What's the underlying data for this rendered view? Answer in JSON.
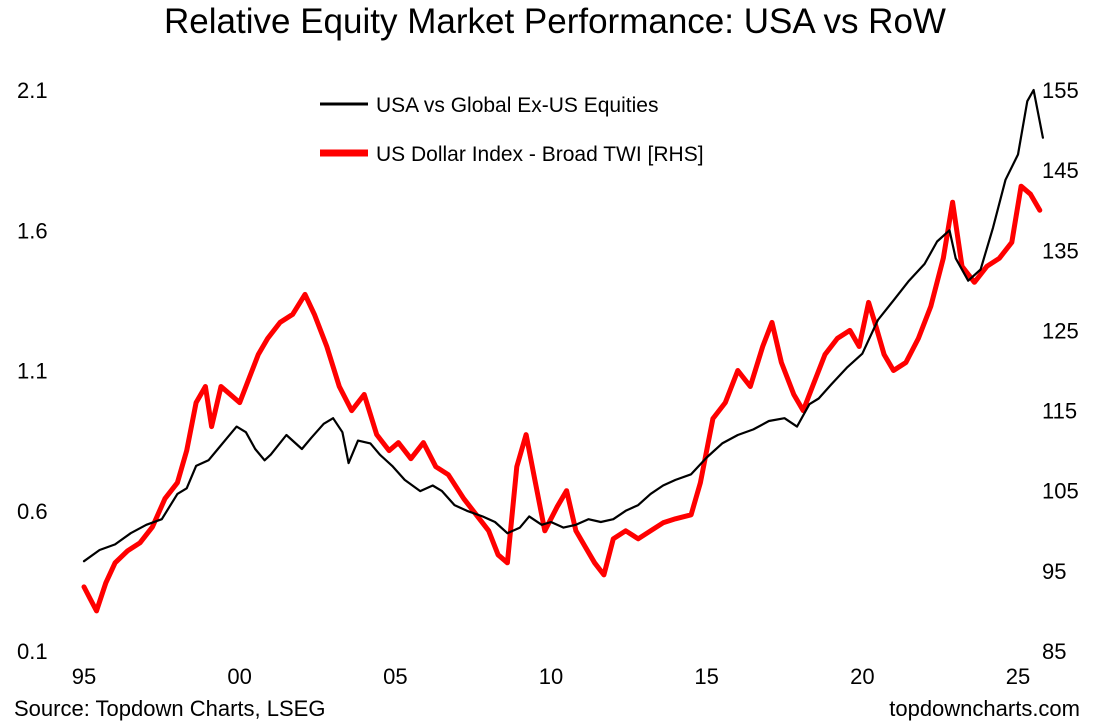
{
  "chart_data": {
    "type": "line",
    "title": "Relative Equity Market Performance: USA vs RoW",
    "x_ticks": [
      "95",
      "00",
      "05",
      "10",
      "15",
      "20",
      "25"
    ],
    "x_tick_years": [
      1995,
      2000,
      2005,
      2010,
      2015,
      2020,
      2025
    ],
    "xlim": [
      1995,
      2025
    ],
    "y_left": {
      "ticks": [
        "0.1",
        "0.6",
        "1.1",
        "1.6",
        "2.1"
      ],
      "lim": [
        0.1,
        2.1
      ]
    },
    "y_right": {
      "ticks": [
        "85",
        "95",
        "105",
        "115",
        "125",
        "135",
        "145",
        "155"
      ],
      "lim": [
        85,
        155
      ]
    },
    "legend_position": "top-center",
    "grid": false,
    "series": [
      {
        "name": "USA vs Global Ex-US Equities",
        "axis": "left",
        "color": "#000000",
        "points": [
          [
            1995.0,
            0.42
          ],
          [
            1995.5,
            0.46
          ],
          [
            1996.0,
            0.48
          ],
          [
            1996.5,
            0.52
          ],
          [
            1997.0,
            0.55
          ],
          [
            1997.5,
            0.57
          ],
          [
            1998.0,
            0.66
          ],
          [
            1998.3,
            0.68
          ],
          [
            1998.6,
            0.76
          ],
          [
            1999.0,
            0.78
          ],
          [
            1999.3,
            0.82
          ],
          [
            1999.6,
            0.86
          ],
          [
            1999.9,
            0.9
          ],
          [
            2000.2,
            0.88
          ],
          [
            2000.5,
            0.82
          ],
          [
            2000.8,
            0.78
          ],
          [
            2001.0,
            0.8
          ],
          [
            2001.5,
            0.87
          ],
          [
            2002.0,
            0.82
          ],
          [
            2002.3,
            0.86
          ],
          [
            2002.7,
            0.91
          ],
          [
            2003.0,
            0.93
          ],
          [
            2003.3,
            0.88
          ],
          [
            2003.5,
            0.77
          ],
          [
            2003.8,
            0.85
          ],
          [
            2004.2,
            0.84
          ],
          [
            2004.5,
            0.8
          ],
          [
            2004.9,
            0.76
          ],
          [
            2005.3,
            0.71
          ],
          [
            2005.8,
            0.67
          ],
          [
            2006.2,
            0.69
          ],
          [
            2006.5,
            0.67
          ],
          [
            2006.9,
            0.62
          ],
          [
            2007.3,
            0.6
          ],
          [
            2007.8,
            0.58
          ],
          [
            2008.2,
            0.56
          ],
          [
            2008.6,
            0.52
          ],
          [
            2009.0,
            0.54
          ],
          [
            2009.3,
            0.58
          ],
          [
            2009.7,
            0.55
          ],
          [
            2010.0,
            0.56
          ],
          [
            2010.4,
            0.54
          ],
          [
            2010.8,
            0.55
          ],
          [
            2011.2,
            0.57
          ],
          [
            2011.6,
            0.56
          ],
          [
            2012.0,
            0.57
          ],
          [
            2012.4,
            0.6
          ],
          [
            2012.8,
            0.62
          ],
          [
            2013.2,
            0.66
          ],
          [
            2013.6,
            0.69
          ],
          [
            2014.0,
            0.71
          ],
          [
            2014.5,
            0.73
          ],
          [
            2015.0,
            0.79
          ],
          [
            2015.5,
            0.84
          ],
          [
            2016.0,
            0.87
          ],
          [
            2016.5,
            0.89
          ],
          [
            2017.0,
            0.92
          ],
          [
            2017.5,
            0.93
          ],
          [
            2017.9,
            0.9
          ],
          [
            2018.3,
            0.98
          ],
          [
            2018.6,
            1.0
          ],
          [
            2019.0,
            1.05
          ],
          [
            2019.5,
            1.11
          ],
          [
            2020.0,
            1.16
          ],
          [
            2020.5,
            1.28
          ],
          [
            2021.0,
            1.35
          ],
          [
            2021.5,
            1.42
          ],
          [
            2022.0,
            1.48
          ],
          [
            2022.4,
            1.56
          ],
          [
            2022.8,
            1.6
          ],
          [
            2023.0,
            1.5
          ],
          [
            2023.4,
            1.42
          ],
          [
            2023.8,
            1.46
          ],
          [
            2024.2,
            1.61
          ],
          [
            2024.6,
            1.78
          ],
          [
            2025.0,
            1.87
          ],
          [
            2025.3,
            2.06
          ],
          [
            2025.5,
            2.1
          ],
          [
            2025.8,
            1.93
          ]
        ]
      },
      {
        "name": "US Dollar Index - Broad TWI [RHS]",
        "axis": "right",
        "color": "#ff0000",
        "points": [
          [
            1995.0,
            93.0
          ],
          [
            1995.2,
            91.5
          ],
          [
            1995.4,
            90.0
          ],
          [
            1995.7,
            93.5
          ],
          [
            1996.0,
            96.0
          ],
          [
            1996.4,
            97.5
          ],
          [
            1996.8,
            98.5
          ],
          [
            1997.2,
            100.5
          ],
          [
            1997.6,
            104.0
          ],
          [
            1998.0,
            106.0
          ],
          [
            1998.3,
            110.0
          ],
          [
            1998.6,
            116.0
          ],
          [
            1998.9,
            118.0
          ],
          [
            1999.1,
            113.0
          ],
          [
            1999.4,
            118.0
          ],
          [
            1999.7,
            117.0
          ],
          [
            2000.0,
            116.0
          ],
          [
            2000.3,
            119.0
          ],
          [
            2000.6,
            122.0
          ],
          [
            2000.9,
            124.0
          ],
          [
            2001.3,
            126.0
          ],
          [
            2001.7,
            127.0
          ],
          [
            2002.1,
            129.5
          ],
          [
            2002.4,
            127.0
          ],
          [
            2002.8,
            123.0
          ],
          [
            2003.2,
            118.0
          ],
          [
            2003.6,
            115.0
          ],
          [
            2004.0,
            117.0
          ],
          [
            2004.4,
            112.0
          ],
          [
            2004.8,
            110.0
          ],
          [
            2005.1,
            111.0
          ],
          [
            2005.5,
            109.0
          ],
          [
            2005.9,
            111.0
          ],
          [
            2006.3,
            108.0
          ],
          [
            2006.7,
            107.0
          ],
          [
            2007.2,
            104.0
          ],
          [
            2007.6,
            102.0
          ],
          [
            2008.0,
            100.0
          ],
          [
            2008.3,
            97.0
          ],
          [
            2008.6,
            96.0
          ],
          [
            2008.9,
            108.0
          ],
          [
            2009.2,
            112.0
          ],
          [
            2009.5,
            106.0
          ],
          [
            2009.8,
            100.0
          ],
          [
            2010.2,
            103.0
          ],
          [
            2010.5,
            105.0
          ],
          [
            2010.8,
            100.0
          ],
          [
            2011.1,
            98.0
          ],
          [
            2011.4,
            96.0
          ],
          [
            2011.7,
            94.5
          ],
          [
            2012.0,
            99.0
          ],
          [
            2012.4,
            100.0
          ],
          [
            2012.8,
            99.0
          ],
          [
            2013.2,
            100.0
          ],
          [
            2013.6,
            101.0
          ],
          [
            2014.0,
            101.5
          ],
          [
            2014.5,
            102.0
          ],
          [
            2014.8,
            106.0
          ],
          [
            2015.2,
            114.0
          ],
          [
            2015.6,
            116.0
          ],
          [
            2016.0,
            120.0
          ],
          [
            2016.4,
            118.0
          ],
          [
            2016.8,
            123.0
          ],
          [
            2017.1,
            126.0
          ],
          [
            2017.4,
            121.0
          ],
          [
            2017.8,
            117.0
          ],
          [
            2018.1,
            115.0
          ],
          [
            2018.4,
            118.0
          ],
          [
            2018.8,
            122.0
          ],
          [
            2019.2,
            124.0
          ],
          [
            2019.6,
            125.0
          ],
          [
            2019.9,
            123.0
          ],
          [
            2020.2,
            128.5
          ],
          [
            2020.4,
            126.0
          ],
          [
            2020.7,
            122.0
          ],
          [
            2021.0,
            120.0
          ],
          [
            2021.4,
            121.0
          ],
          [
            2021.8,
            124.0
          ],
          [
            2022.2,
            128.0
          ],
          [
            2022.6,
            134.0
          ],
          [
            2022.9,
            141.0
          ],
          [
            2023.2,
            133.0
          ],
          [
            2023.6,
            131.0
          ],
          [
            2024.0,
            133.0
          ],
          [
            2024.4,
            134.0
          ],
          [
            2024.8,
            136.0
          ],
          [
            2025.1,
            143.0
          ],
          [
            2025.4,
            142.0
          ],
          [
            2025.7,
            140.0
          ]
        ]
      }
    ]
  },
  "footer": {
    "source": "Source: Topdown Charts, LSEG",
    "brand": "topdowncharts.com"
  }
}
